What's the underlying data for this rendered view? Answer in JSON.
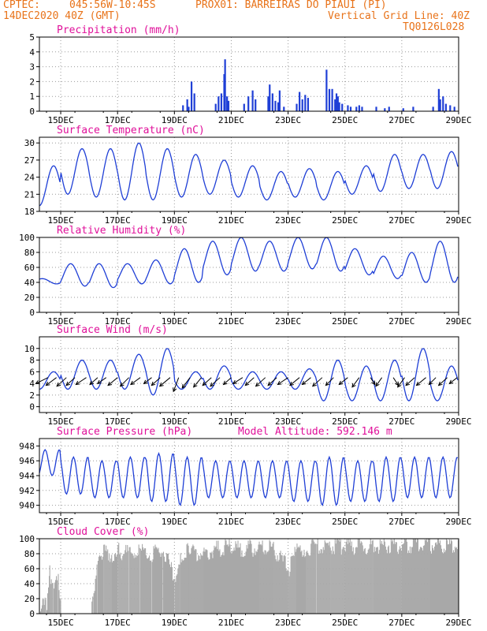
{
  "header": {
    "center": "CPTEC:",
    "location": "045:56W-10:45S",
    "station": "PROX01: BARREIRAS DO PIAUI (PI)",
    "run": "14DEC2020 40Z (GMT)",
    "grid_line": "Vertical Grid Line: 40Z",
    "model_code": "TQ0126L028",
    "model_altitude": "Model Altitude: 592.146 m"
  },
  "colors": {
    "header": "#e8731a",
    "title": "#e0109a",
    "series": "#1f3fd6",
    "cloud": "#a8a8a8",
    "wind": "#000000"
  },
  "x_tick_labels": [
    "15DEC",
    "17DEC",
    "19DEC",
    "21DEC",
    "23DEC",
    "25DEC",
    "27DEC",
    "29DEC"
  ],
  "chart_data": [
    {
      "type": "bar",
      "title": "Precipitation (mm/h)",
      "ylim": [
        0,
        5
      ],
      "y_ticks": [
        0,
        1,
        2,
        3,
        4,
        5
      ],
      "xlim_days": [
        14.25,
        29.0
      ],
      "grid": true,
      "values_by_day": [
        [
          19.3,
          0.4
        ],
        [
          19.45,
          0.8
        ],
        [
          19.5,
          0.3
        ],
        [
          19.6,
          2.0
        ],
        [
          19.7,
          1.2
        ],
        [
          20.45,
          0.5
        ],
        [
          20.55,
          1.0
        ],
        [
          20.65,
          1.2
        ],
        [
          20.75,
          2.5
        ],
        [
          20.78,
          3.5
        ],
        [
          20.85,
          1.0
        ],
        [
          20.9,
          0.7
        ],
        [
          21.45,
          0.5
        ],
        [
          21.6,
          1.0
        ],
        [
          21.75,
          1.4
        ],
        [
          21.85,
          0.8
        ],
        [
          22.3,
          1.0
        ],
        [
          22.35,
          1.8
        ],
        [
          22.45,
          1.2
        ],
        [
          22.55,
          0.7
        ],
        [
          22.65,
          0.6
        ],
        [
          22.7,
          1.4
        ],
        [
          22.85,
          0.3
        ],
        [
          23.3,
          0.5
        ],
        [
          23.4,
          1.3
        ],
        [
          23.5,
          0.8
        ],
        [
          23.6,
          1.1
        ],
        [
          23.7,
          0.9
        ],
        [
          24.35,
          2.8
        ],
        [
          24.45,
          1.5
        ],
        [
          24.55,
          1.5
        ],
        [
          24.65,
          0.8
        ],
        [
          24.7,
          1.2
        ],
        [
          24.75,
          1.0
        ],
        [
          24.8,
          0.6
        ],
        [
          24.9,
          0.5
        ],
        [
          25.1,
          0.4
        ],
        [
          25.2,
          0.3
        ],
        [
          25.4,
          0.3
        ],
        [
          25.5,
          0.4
        ],
        [
          25.6,
          0.3
        ],
        [
          26.1,
          0.3
        ],
        [
          26.4,
          0.2
        ],
        [
          26.55,
          0.3
        ],
        [
          27.05,
          0.2
        ],
        [
          27.4,
          0.3
        ],
        [
          28.1,
          0.3
        ],
        [
          28.3,
          1.5
        ],
        [
          28.35,
          0.8
        ],
        [
          28.45,
          1.0
        ],
        [
          28.55,
          0.5
        ],
        [
          28.7,
          0.4
        ],
        [
          28.85,
          0.3
        ]
      ]
    },
    {
      "type": "line",
      "title": "Surface Temperature (nC)",
      "ylim": [
        18,
        31
      ],
      "y_ticks": [
        18,
        21,
        24,
        27,
        30
      ],
      "xlim_days": [
        14.25,
        29.0
      ],
      "grid": true,
      "daily_max": [
        26,
        29,
        29,
        30,
        29,
        28,
        27,
        26,
        25,
        25.5,
        25,
        26,
        28,
        28,
        28.5,
        27.5
      ],
      "daily_min": [
        19,
        21,
        20.5,
        20,
        20,
        20.5,
        21,
        20.5,
        20,
        20.5,
        20,
        21,
        21.5,
        22,
        22,
        22.5
      ]
    },
    {
      "type": "line",
      "title": "Relative Humidity (%)",
      "ylim": [
        0,
        100
      ],
      "y_ticks": [
        0,
        20,
        40,
        60,
        80,
        100
      ],
      "xlim_days": [
        14.25,
        29.0
      ],
      "grid": true,
      "daily_max": [
        45,
        65,
        65,
        65,
        70,
        85,
        95,
        100,
        95,
        100,
        100,
        85,
        75,
        80,
        95,
        90
      ],
      "daily_min": [
        38,
        35,
        33,
        38,
        38,
        40,
        50,
        55,
        55,
        58,
        55,
        50,
        45,
        40,
        40,
        45
      ]
    },
    {
      "type": "line",
      "title": "Surface Wind (m/s)",
      "ylim": [
        -1,
        12
      ],
      "y_ticks": [
        0,
        2,
        4,
        6,
        8,
        10
      ],
      "xlim_days": [
        14.25,
        29.0
      ],
      "grid": true,
      "daily_max": [
        6,
        8,
        8,
        9,
        10,
        6,
        7,
        6,
        6,
        6.5,
        8,
        7,
        8,
        10,
        7,
        7
      ],
      "daily_min": [
        3,
        3,
        3,
        3,
        2,
        3,
        3,
        3,
        3,
        3,
        1,
        1,
        1,
        1,
        1,
        1
      ],
      "wind_vectors": [
        [
          14.55,
          -0.7,
          0.35
        ],
        [
          14.85,
          -0.6,
          0.45
        ],
        [
          15.2,
          -0.55,
          0.5
        ],
        [
          15.5,
          -0.5,
          0.45
        ],
        [
          15.9,
          -0.6,
          0.4
        ],
        [
          16.3,
          -0.45,
          0.4
        ],
        [
          16.6,
          -0.5,
          0.35
        ],
        [
          17.0,
          -0.55,
          0.45
        ],
        [
          17.4,
          -0.5,
          0.5
        ],
        [
          17.8,
          -0.55,
          0.4
        ],
        [
          18.2,
          -0.45,
          0.35
        ],
        [
          18.5,
          -0.5,
          0.45
        ],
        [
          18.85,
          -0.6,
          0.5
        ],
        [
          19.15,
          -0.3,
          0.8
        ],
        [
          19.55,
          -0.45,
          0.6
        ],
        [
          19.95,
          -0.45,
          0.55
        ],
        [
          20.3,
          -0.5,
          0.45
        ],
        [
          20.6,
          -0.55,
          0.5
        ],
        [
          21.0,
          -0.45,
          0.4
        ],
        [
          21.4,
          -0.55,
          0.35
        ],
        [
          21.8,
          -0.5,
          0.45
        ],
        [
          22.2,
          -0.55,
          0.5
        ],
        [
          22.6,
          -0.5,
          0.45
        ],
        [
          23.0,
          -0.6,
          0.4
        ],
        [
          23.4,
          -0.55,
          0.45
        ],
        [
          23.8,
          -0.5,
          0.4
        ],
        [
          24.2,
          -0.55,
          0.5
        ],
        [
          24.6,
          -0.45,
          0.45
        ],
        [
          25.1,
          -0.5,
          0.4
        ],
        [
          25.5,
          -0.4,
          0.55
        ],
        [
          25.9,
          0.25,
          0.4
        ],
        [
          26.3,
          -0.35,
          0.5
        ],
        [
          26.7,
          0.3,
          0.45
        ],
        [
          27.1,
          -0.4,
          0.55
        ],
        [
          27.45,
          -0.5,
          0.45
        ],
        [
          27.85,
          -0.55,
          0.45
        ],
        [
          28.2,
          -0.4,
          0.4
        ],
        [
          28.6,
          -0.5,
          0.45
        ],
        [
          28.95,
          -0.45,
          0.35
        ]
      ]
    },
    {
      "type": "line",
      "title": "Surface Pressure (hPa)",
      "ylim": [
        939,
        949
      ],
      "y_ticks": [
        940,
        942,
        944,
        946,
        948
      ],
      "xlim_days": [
        14.25,
        29.0
      ],
      "grid": true,
      "daily_max": [
        947.5,
        946.5,
        946,
        946.5,
        947,
        946.5,
        946,
        946,
        946,
        946,
        946.5,
        946,
        946.5,
        946.5,
        946.5,
        946
      ],
      "daily_min": [
        944,
        941.5,
        941,
        941,
        940.5,
        940,
        941,
        941,
        941,
        940.5,
        940,
        940.5,
        940.5,
        941,
        941,
        940.5
      ]
    },
    {
      "type": "bar",
      "title": "Cloud Cover (%)",
      "ylim": [
        0,
        100
      ],
      "y_ticks": [
        0,
        20,
        40,
        60,
        80,
        100
      ],
      "xlim_days": [
        14.25,
        29.0
      ],
      "grid": true,
      "segments_by_day": [
        [
          14.25,
          0
        ],
        [
          14.35,
          30
        ],
        [
          14.5,
          10
        ],
        [
          14.6,
          60
        ],
        [
          14.75,
          45
        ],
        [
          14.9,
          65
        ],
        [
          15.0,
          0
        ],
        [
          16.0,
          0
        ],
        [
          16.15,
          25
        ],
        [
          16.3,
          70
        ],
        [
          16.5,
          90
        ],
        [
          16.8,
          85
        ],
        [
          17.0,
          90
        ],
        [
          17.4,
          85
        ],
        [
          17.8,
          90
        ],
        [
          18.2,
          85
        ],
        [
          18.6,
          90
        ],
        [
          19.0,
          55
        ],
        [
          19.2,
          85
        ],
        [
          19.5,
          90
        ],
        [
          20.0,
          85
        ],
        [
          20.5,
          92
        ],
        [
          21.0,
          95
        ],
        [
          21.5,
          92
        ],
        [
          22.0,
          95
        ],
        [
          22.5,
          92
        ],
        [
          23.0,
          65
        ],
        [
          23.3,
          90
        ],
        [
          23.6,
          93
        ],
        [
          24.0,
          96
        ],
        [
          24.5,
          97
        ],
        [
          25.0,
          96
        ],
        [
          26.0,
          97
        ],
        [
          27.0,
          97
        ],
        [
          28.0,
          98
        ],
        [
          29.0,
          98
        ]
      ]
    }
  ]
}
